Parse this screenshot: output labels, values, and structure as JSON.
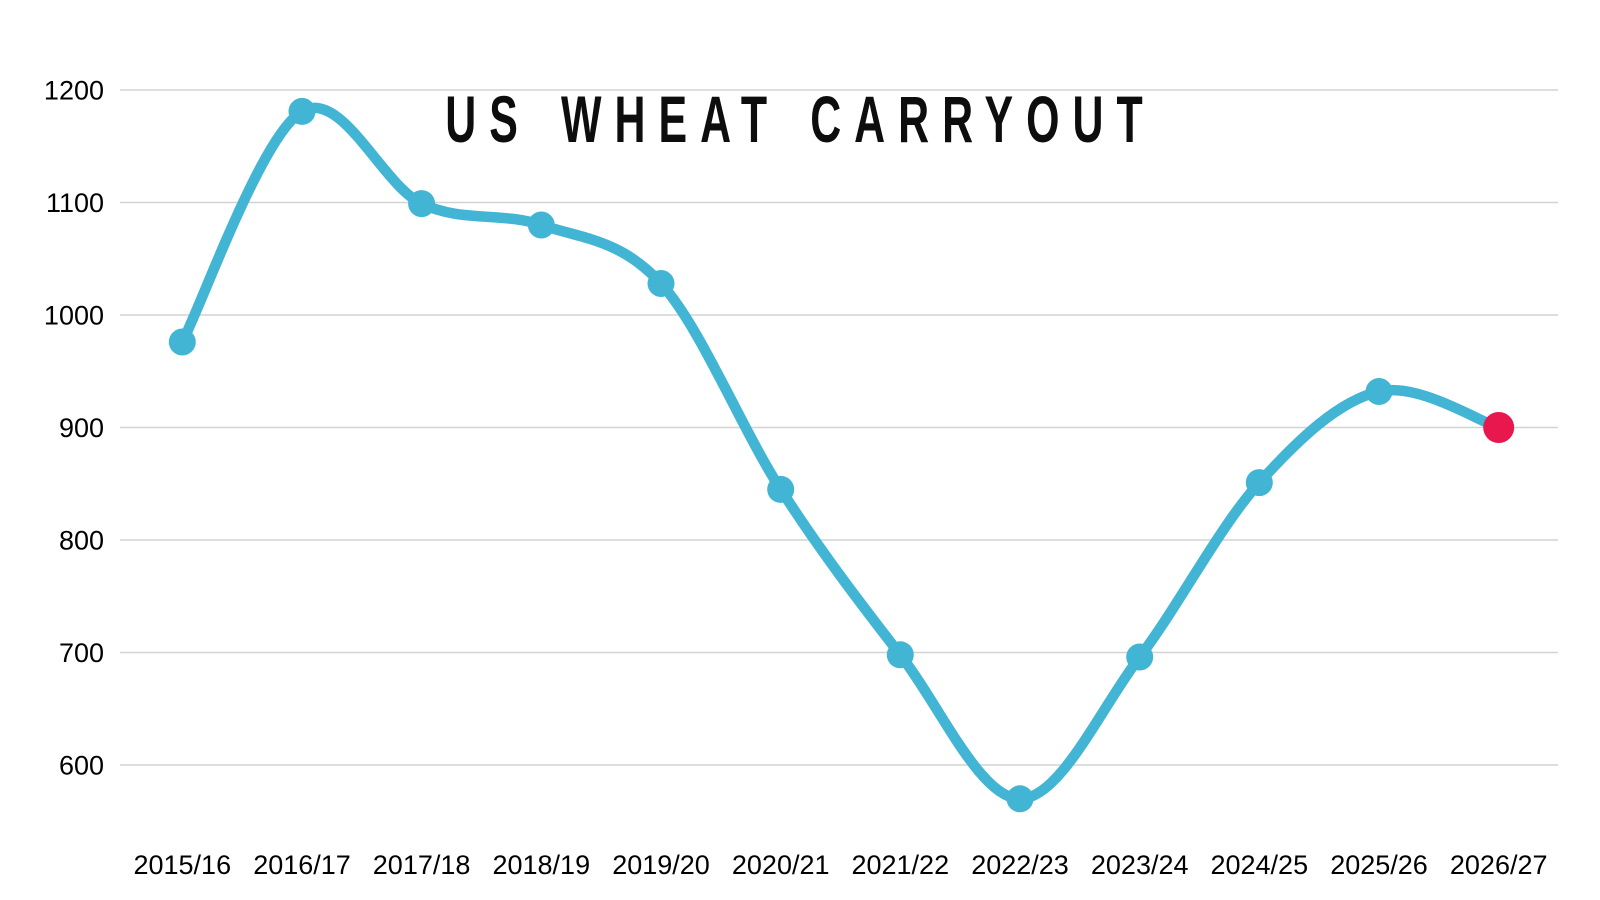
{
  "chart": {
    "title": "US WHEAT CARRYOUT"
  },
  "chart_data": {
    "type": "line",
    "title": "US WHEAT CARRYOUT",
    "categories": [
      "2015/16",
      "2016/17",
      "2017/18",
      "2018/19",
      "2019/20",
      "2020/21",
      "2021/22",
      "2022/23",
      "2023/24",
      "2024/25",
      "2025/26",
      "2026/27"
    ],
    "values": [
      976,
      1181,
      1099,
      1080,
      1028,
      845,
      698,
      570,
      696,
      851,
      932,
      900
    ],
    "highlight_last_point": true,
    "highlight_category": "2026/27",
    "highlight_value": 900,
    "yticks": [
      1200,
      1100,
      1000,
      900,
      800,
      700,
      600
    ],
    "ylim": [
      545,
      1230
    ],
    "xlabel": "",
    "ylabel": "",
    "grid": true,
    "legend": "none",
    "colors": {
      "line": "#42b5d5",
      "point": "#42b5d5",
      "highlight_point": "#e8174d",
      "grid": "#d3d3d3",
      "text": "#000000",
      "title": "#0d0d0d",
      "background": "#ffffff"
    }
  }
}
